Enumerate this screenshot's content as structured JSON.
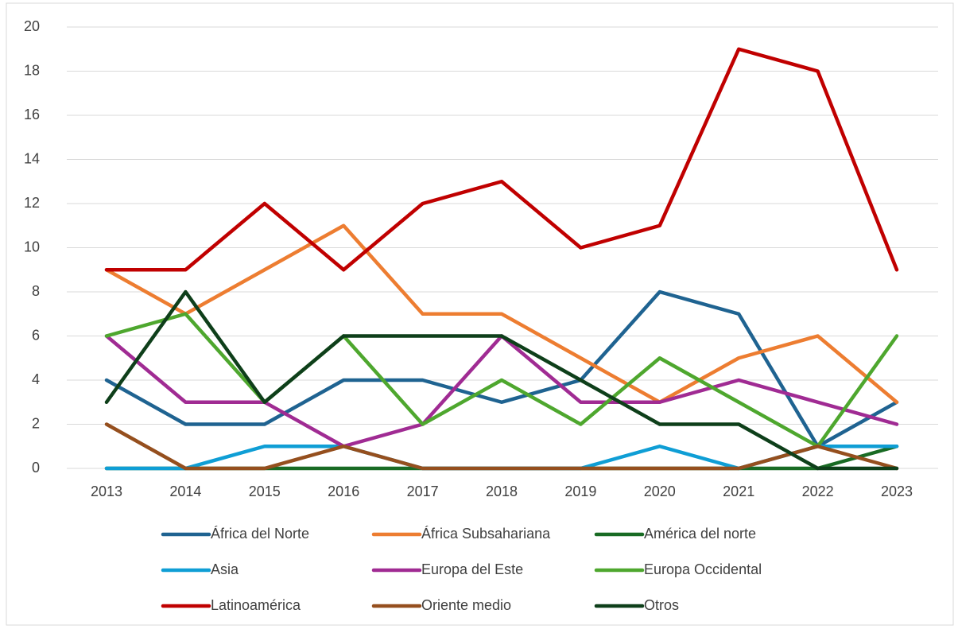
{
  "chart_data": {
    "type": "line",
    "x": [
      2013,
      2014,
      2015,
      2016,
      2017,
      2018,
      2019,
      2020,
      2021,
      2022,
      2023
    ],
    "xlim": [
      2013,
      2023
    ],
    "ylim": [
      0,
      20
    ],
    "yticks": [
      0,
      2,
      4,
      6,
      8,
      10,
      12,
      14,
      16,
      18,
      20
    ],
    "grid": true,
    "legend": "bottom",
    "series": [
      {
        "name": "África del Norte",
        "color": "#1f6391",
        "values": [
          4,
          2,
          2,
          4,
          4,
          3,
          4,
          8,
          7,
          1,
          3
        ]
      },
      {
        "name": "África Subsahariana",
        "color": "#ed7d31",
        "values": [
          9,
          7,
          9,
          11,
          7,
          7,
          5,
          3,
          5,
          6,
          3
        ]
      },
      {
        "name": "América del norte",
        "color": "#196b24",
        "values": [
          0,
          0,
          0,
          0,
          0,
          0,
          0,
          0,
          0,
          0,
          1
        ]
      },
      {
        "name": "Asia",
        "color": "#0f9ed5",
        "values": [
          0,
          0,
          1,
          1,
          0,
          0,
          0,
          1,
          0,
          1,
          1
        ]
      },
      {
        "name": "Europa del Este",
        "color": "#a02b93",
        "values": [
          6,
          3,
          3,
          1,
          2,
          6,
          3,
          3,
          4,
          3,
          2
        ]
      },
      {
        "name": "Europa Occidental",
        "color": "#4ea72e",
        "values": [
          6,
          7,
          3,
          6,
          2,
          4,
          2,
          5,
          3,
          1,
          6
        ]
      },
      {
        "name": "Latinoamérica",
        "color": "#c00000",
        "values": [
          9,
          9,
          12,
          9,
          12,
          13,
          10,
          11,
          19,
          18,
          9
        ]
      },
      {
        "name": "Oriente medio",
        "color": "#954f1e",
        "values": [
          2,
          0,
          0,
          1,
          0,
          0,
          0,
          0,
          0,
          1,
          0
        ]
      },
      {
        "name": "Otros",
        "color": "#0e3f1a",
        "values": [
          3,
          8,
          3,
          6,
          6,
          6,
          4,
          2,
          2,
          0,
          0
        ]
      }
    ]
  }
}
